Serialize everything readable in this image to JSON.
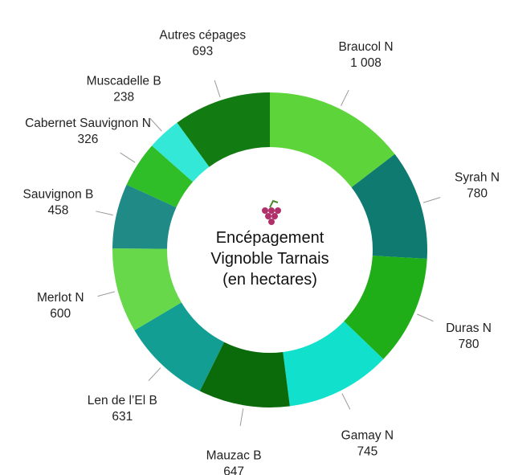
{
  "chart_data": {
    "type": "donut",
    "title": "Encépagement Vignoble Tarnais (en hectares)",
    "categories": [
      "Braucol N",
      "Syrah N",
      "Duras N",
      "Gamay N",
      "Mauzac B",
      "Len de l’El B",
      "Merlot N",
      "Sauvignon B",
      "Cabernet Sauvignon N",
      "Muscadelle B",
      "Autres cépages"
    ],
    "values": [
      1008,
      780,
      780,
      745,
      647,
      631,
      600,
      458,
      326,
      238,
      693
    ],
    "value_labels": [
      "1 008",
      "780",
      "780",
      "745",
      "647",
      "631",
      "600",
      "458",
      "326",
      "238",
      "693"
    ],
    "colors": [
      "#5cd43a",
      "#0e7a70",
      "#1fae18",
      "#11e0cc",
      "#0b6b0b",
      "#139e94",
      "#66d84a",
      "#1f8a86",
      "#2fbe27",
      "#33e8d6",
      "#127c12"
    ]
  }
}
